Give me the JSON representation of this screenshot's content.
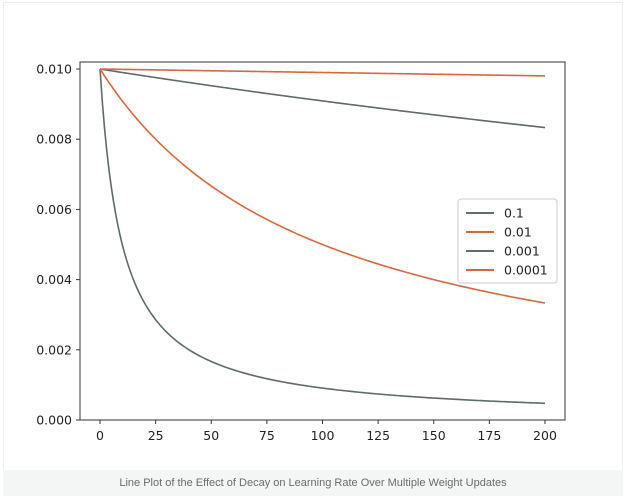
{
  "caption": "Line Plot of the Effect of Decay on Learning Rate Over Multiple Weight Updates",
  "chart_data": {
    "type": "line",
    "title": "",
    "xlabel": "",
    "ylabel": "",
    "xlim": [
      -9,
      209
    ],
    "ylim": [
      0.0,
      0.0102
    ],
    "x_ticks": [
      0,
      25,
      50,
      75,
      100,
      125,
      150,
      175,
      200
    ],
    "y_ticks": [
      0.0,
      0.002,
      0.004,
      0.006,
      0.008,
      0.01
    ],
    "y_tick_labels": [
      "0.000",
      "0.002",
      "0.004",
      "0.006",
      "0.008",
      "0.010"
    ],
    "legend_position": "center-right",
    "grid": false,
    "initial_value": 0.01,
    "x_range": [
      0,
      200
    ],
    "series": [
      {
        "name": "0.1",
        "decay": 0.1,
        "color": "#5f6b66"
      },
      {
        "name": "0.01",
        "decay": 0.01,
        "color": "#d4693f"
      },
      {
        "name": "0.001",
        "decay": 0.001,
        "color": "#5f6b66"
      },
      {
        "name": "0.0001",
        "decay": 0.0001,
        "color": "#d4693f"
      }
    ]
  }
}
